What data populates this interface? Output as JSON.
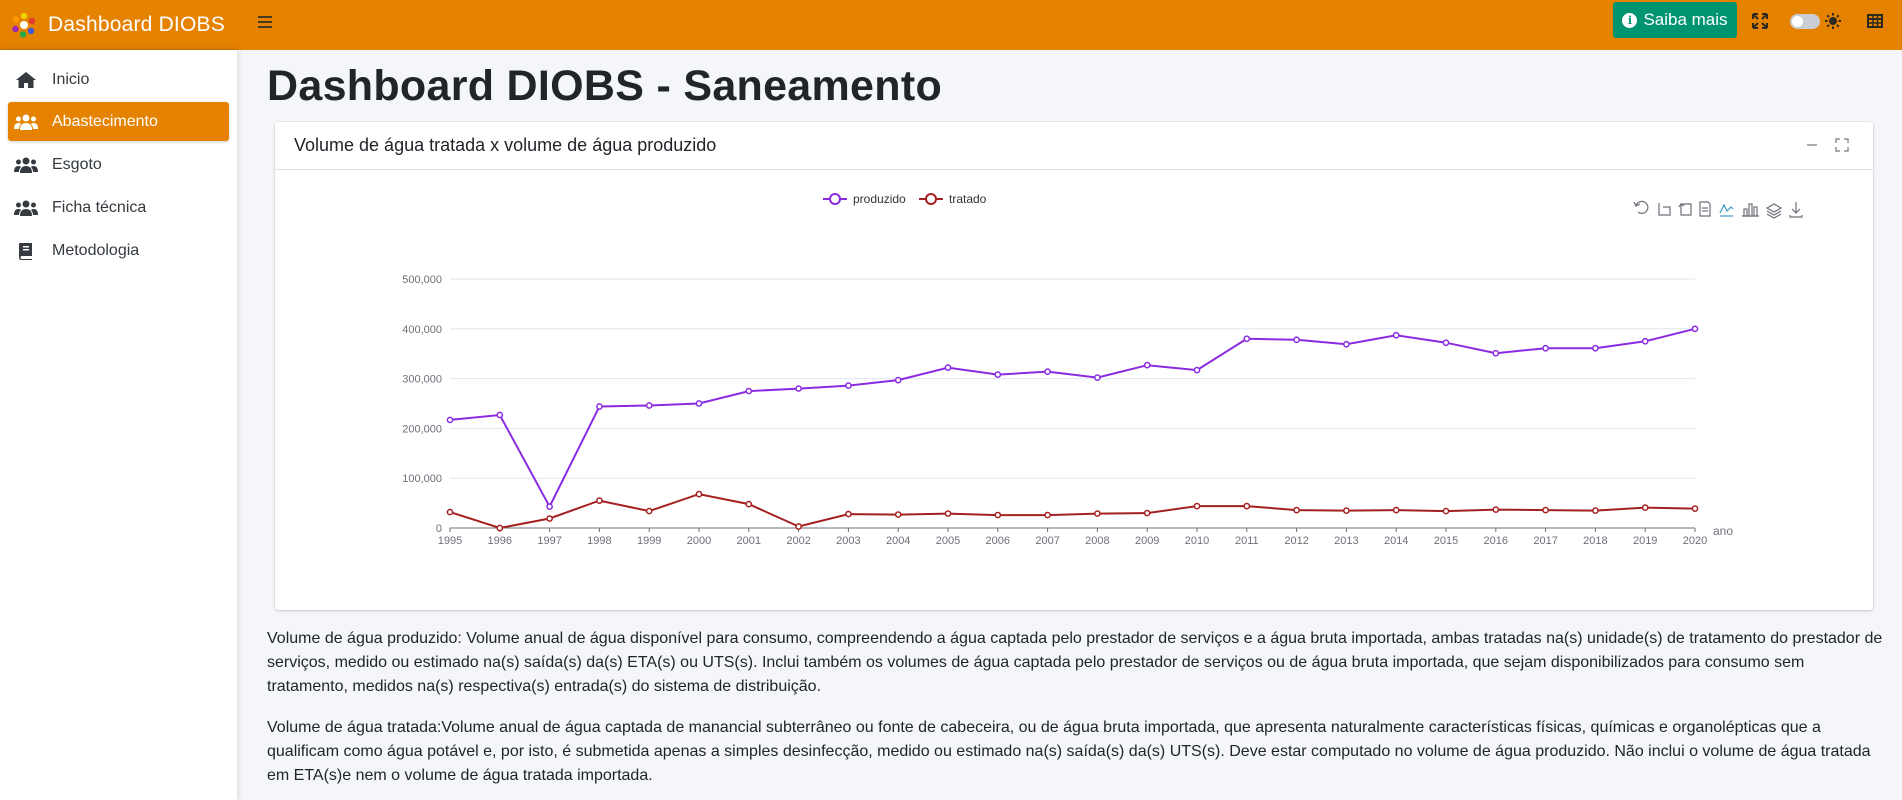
{
  "brand": {
    "title": "Dashboard DIOBS"
  },
  "navbar": {
    "saiba_label": "Saiba mais"
  },
  "sidebar": {
    "items": [
      {
        "label": "Inicio",
        "icon": "home-icon"
      },
      {
        "label": "Abastecimento",
        "icon": "users-icon",
        "active": true
      },
      {
        "label": "Esgoto",
        "icon": "users-icon"
      },
      {
        "label": "Ficha técnica",
        "icon": "users-icon"
      },
      {
        "label": "Metodologia",
        "icon": "book-icon"
      }
    ]
  },
  "page": {
    "title": "Dashboard DIOBS - Saneamento"
  },
  "card": {
    "title": "Volume de água tratada x volume de água produzido"
  },
  "chart_data": {
    "type": "line",
    "title": "",
    "xlabel": "ano",
    "ylabel": "",
    "ylim": [
      0,
      500000
    ],
    "yticks": [
      "0",
      "100,000",
      "200,000",
      "300,000",
      "400,000",
      "500,000"
    ],
    "legend_position": "top-center",
    "grid": true,
    "x": [
      "1995",
      "1996",
      "1997",
      "1998",
      "1999",
      "2000",
      "2001",
      "2002",
      "2003",
      "2004",
      "2005",
      "2006",
      "2007",
      "2008",
      "2009",
      "2010",
      "2011",
      "2012",
      "2013",
      "2014",
      "2015",
      "2016",
      "2017",
      "2018",
      "2019",
      "2020"
    ],
    "series": [
      {
        "name": "produzido",
        "color": "#8a2be2",
        "values": [
          217000,
          227000,
          43000,
          244000,
          246000,
          250000,
          275000,
          280000,
          286000,
          297000,
          322000,
          308000,
          314000,
          302000,
          327000,
          317000,
          380000,
          378000,
          369000,
          387000,
          372000,
          351000,
          361000,
          361000,
          375000,
          400000
        ]
      },
      {
        "name": "tratado",
        "color": "#a52020",
        "values": [
          32000,
          0,
          19000,
          55000,
          34000,
          68000,
          48000,
          3000,
          28000,
          27000,
          29000,
          26000,
          26000,
          29000,
          30000,
          44000,
          44000,
          36000,
          35000,
          36000,
          34000,
          37000,
          36000,
          35000,
          41000,
          39000
        ]
      }
    ]
  },
  "descriptions": {
    "produzido": "Volume de água produzido: Volume anual de água disponível para consumo, compreendendo a água captada pelo prestador de serviços e a água bruta importada, ambas tratadas na(s) unidade(s) de tratamento do prestador de serviços, medido ou estimado na(s) saída(s) da(s) ETA(s) ou UTS(s). Inclui também os volumes de água captada pelo prestador de serviços ou de água bruta importada, que sejam disponibilizados para consumo sem tratamento, medidos na(s) respectiva(s) entrada(s) do sistema de distribuição.",
    "tratada": "Volume de água tratada:Volume anual de água captada de manancial subterrâneo ou fonte de cabeceira, ou de água bruta importada, que apresenta naturalmente características físicas, químicas e organolépticas que a qualificam como água potável e, por isto, é submetida apenas a simples desinfecção, medido ou estimado na(s) saída(s) da(s) UTS(s). Deve estar computado no volume de água produzido. Não inclui o volume de água tratada em ETA(s)e nem o volume de água tratada importada."
  },
  "colors": {
    "accent": "#e58200",
    "button": "#009470"
  }
}
